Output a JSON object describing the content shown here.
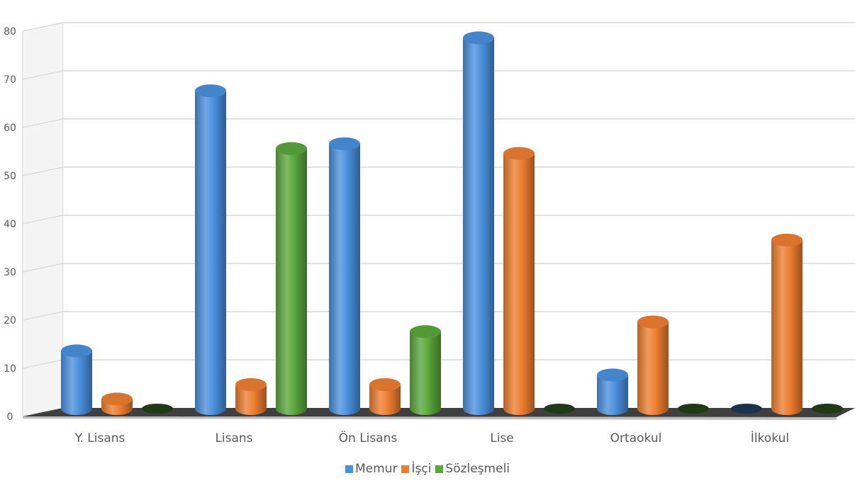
{
  "chart_data": {
    "type": "bar",
    "style": "3d-cylinder",
    "categories": [
      "Y. Lisans",
      "Lisans",
      "Ön Lisans",
      "Lise",
      "Ortaokul",
      "İlkokul"
    ],
    "series": [
      {
        "name": "Memur",
        "color": "#4a8fdc",
        "values": [
          12,
          66,
          55,
          77,
          7,
          0
        ]
      },
      {
        "name": "İşçi",
        "color": "#ed7d31",
        "values": [
          2,
          5,
          5,
          53,
          18,
          35
        ]
      },
      {
        "name": "Sözleşmeli",
        "color": "#5aa63c",
        "values": [
          0,
          54,
          16,
          0,
          0,
          0
        ]
      }
    ],
    "y_ticks": [
      "0",
      "10",
      "20",
      "30",
      "40",
      "50",
      "60",
      "70",
      "80"
    ],
    "ylim": [
      0,
      80
    ],
    "grid": true,
    "legend_position": "bottom"
  }
}
